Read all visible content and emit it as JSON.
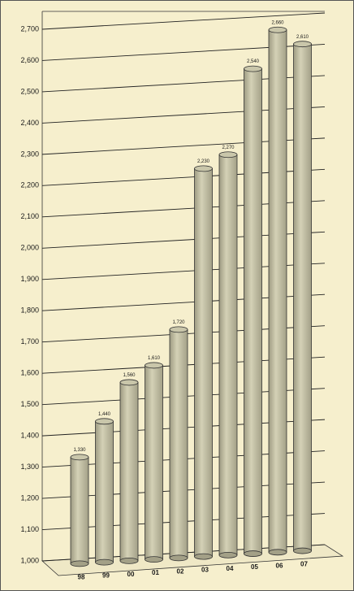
{
  "chart_data": {
    "type": "cylinder-bar",
    "categories": [
      "98",
      "99",
      "00",
      "01",
      "02",
      "03",
      "04",
      "05",
      "06",
      "07"
    ],
    "values": [
      1330,
      1440,
      1560,
      1610,
      1720,
      2230,
      2270,
      2540,
      2660,
      2610
    ],
    "value_labels": [
      "1,330",
      "1,440",
      "1,560",
      "1,610",
      "1,720",
      "2,230",
      "2,270",
      "2,540",
      "2,660",
      "2,610"
    ],
    "color": "#c9c6aa",
    "ylim": [
      1000,
      2700
    ],
    "yticks": [
      {
        "value": 1000,
        "label": "1,000"
      },
      {
        "value": 1100,
        "label": "1,100"
      },
      {
        "value": 1200,
        "label": "1,200"
      },
      {
        "value": 1300,
        "label": "1,300"
      },
      {
        "value": 1400,
        "label": "1,400"
      },
      {
        "value": 1500,
        "label": "1,500"
      },
      {
        "value": 1600,
        "label": "1,600"
      },
      {
        "value": 1700,
        "label": "1,700"
      },
      {
        "value": 1800,
        "label": "1,800"
      },
      {
        "value": 1900,
        "label": "1,900"
      },
      {
        "value": 2000,
        "label": "2,000"
      },
      {
        "value": 2100,
        "label": "2,100"
      },
      {
        "value": 2200,
        "label": "2,200"
      },
      {
        "value": 2300,
        "label": "2,300"
      },
      {
        "value": 2400,
        "label": "2,400"
      },
      {
        "value": 2500,
        "label": "2,500"
      },
      {
        "value": 2600,
        "label": "2,600"
      },
      {
        "value": 2700,
        "label": "2,700"
      }
    ],
    "grid": true
  }
}
